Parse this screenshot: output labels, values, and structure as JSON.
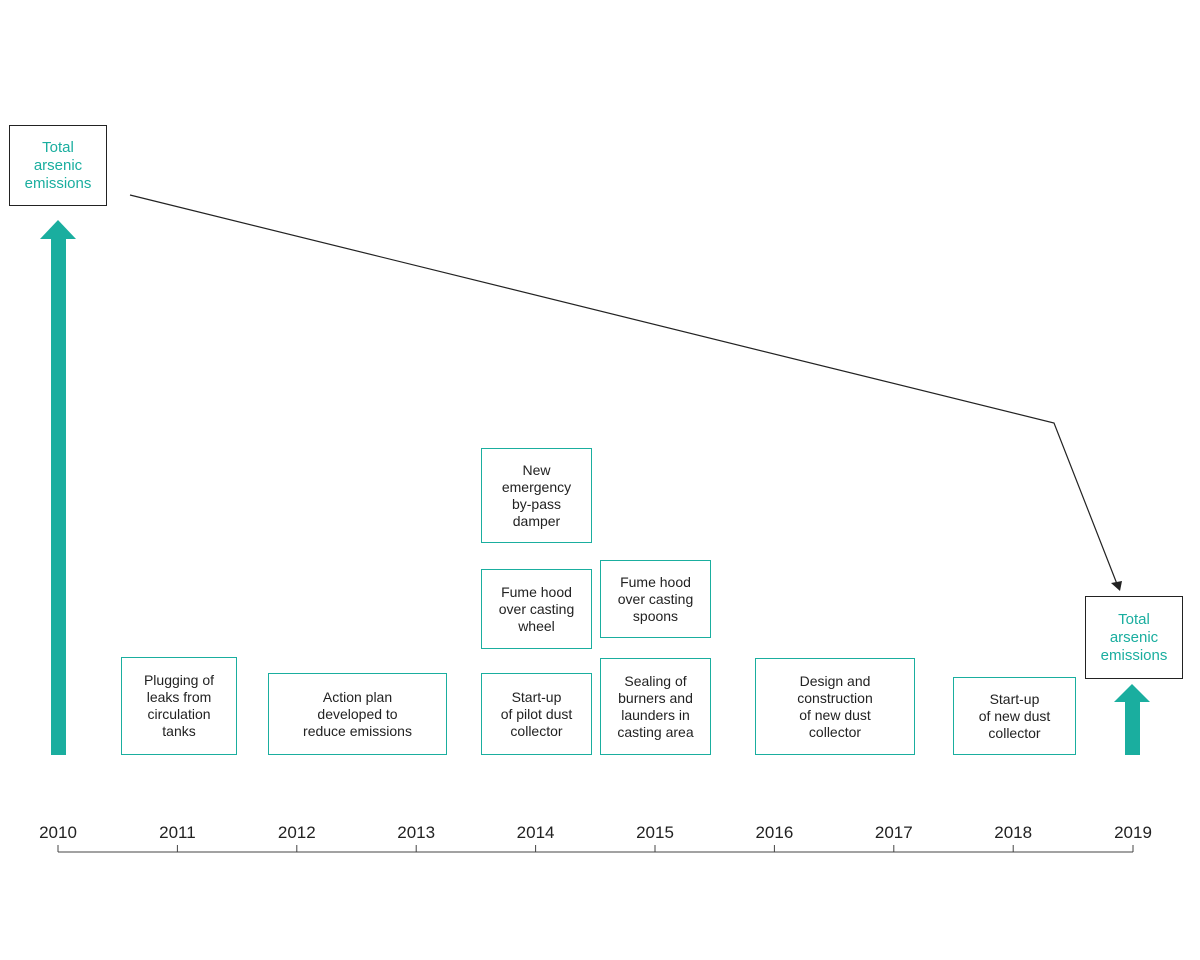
{
  "colors": {
    "accent": "#1aae9f",
    "line": "#222222"
  },
  "total_label_start": "Total\narsenic\nemissions",
  "total_label_end": "Total\narsenic\nemissions",
  "milestones": [
    "Plugging of\nleaks from\ncirculation\ntanks",
    "Action plan\ndeveloped to\nreduce emissions",
    "New\nemergency\nby-pass\ndamper",
    "Fume hood\nover casting\nwheel",
    "Start-up\nof pilot dust\ncollector",
    "Fume hood\nover casting\nspoons",
    "Sealing of\nburners and\nlaunders in\ncasting area",
    "Design and\nconstruction\nof new dust\ncollector",
    "Start-up\nof new dust\ncollector"
  ],
  "years": [
    "2010",
    "2011",
    "2012",
    "2013",
    "2014",
    "2015",
    "2016",
    "2017",
    "2018",
    "2019"
  ],
  "emission_levels": {
    "start": 1.0,
    "end": 0.15
  }
}
